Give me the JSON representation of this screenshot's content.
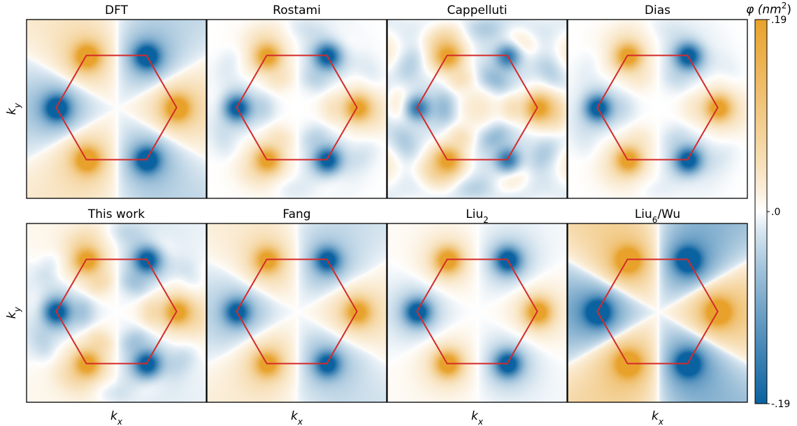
{
  "chart_data": {
    "type": "heatmap",
    "layout": {
      "rows": 2,
      "cols": 4
    },
    "panels": [
      {
        "title": "DFT",
        "pattern": {
          "valley": 1.0,
          "triangles": 0.35,
          "ring": 0.0,
          "spots": 0.0
        }
      },
      {
        "title": "Rostami",
        "pattern": {
          "valley": 0.9,
          "triangles": 0.0,
          "ring": 0.25,
          "spots": 0.0
        }
      },
      {
        "title": "Cappelluti",
        "pattern": {
          "valley": 0.75,
          "triangles": 0.0,
          "ring": 0.45,
          "spots": 0.3
        }
      },
      {
        "title": "Dias",
        "pattern": {
          "valley": 0.95,
          "triangles": 0.0,
          "ring": 0.15,
          "spots": 0.0
        }
      },
      {
        "title": "This work",
        "pattern": {
          "valley": 0.9,
          "triangles": 0.1,
          "ring": 0.35,
          "spots": 0.0
        }
      },
      {
        "title": "Fang",
        "pattern": {
          "valley": 0.85,
          "triangles": 0.25,
          "ring": 0.05,
          "spots": 0.0
        }
      },
      {
        "title": "Liu",
        "title_sub": "2",
        "pattern": {
          "valley": 1.0,
          "triangles": 0.05,
          "ring": 0.0,
          "spots": 0.0
        }
      },
      {
        "title": "Liu",
        "title_sub": "6",
        "title_suffix": "/Wu",
        "pattern": {
          "valley": 1.0,
          "triangles": 0.7,
          "ring": 0.0,
          "spots": 0.0
        }
      }
    ],
    "xlabel": "k",
    "xlabel_sub": "x",
    "ylabel": "k",
    "ylabel_sub": "y",
    "colorbar": {
      "label": "φ (nm",
      "label_sup": "2",
      "label_close": ")",
      "ticks": [
        {
          "value": 0.19,
          "label": ".19"
        },
        {
          "value": 0.0,
          "label": ".0"
        },
        {
          "value": -0.19,
          "label": "-.19"
        }
      ],
      "range": [
        -0.19,
        0.19
      ]
    },
    "overlay": "hexagon",
    "colors": {
      "positive": "#e8a22c",
      "negative": "#0b62a0",
      "zero": "#ffffff",
      "hexagon": "#d42a2a"
    }
  }
}
